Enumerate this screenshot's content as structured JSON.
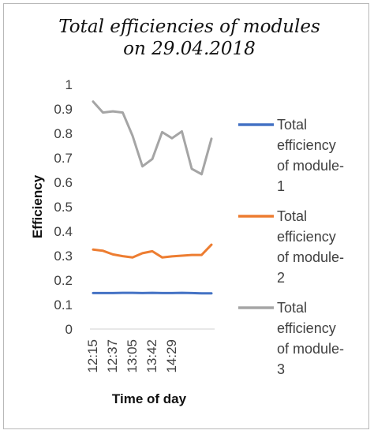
{
  "chart_data": {
    "type": "line",
    "title": "Total efficiencies of modules on 29.04.2018",
    "xlabel": "Time of day",
    "ylabel": "Efficiency",
    "x_tick_labels": [
      "12:15",
      "12:37",
      "13:05",
      "13:42",
      "14:29"
    ],
    "x_tick_label_every": 2,
    "ylim": [
      0,
      1
    ],
    "y_ticks": [
      "0",
      "0.1",
      "0.2",
      "0.3",
      "0.4",
      "0.5",
      "0.6",
      "0.7",
      "0.8",
      "0.9",
      "1"
    ],
    "grid": false,
    "legend_position": "right",
    "series": [
      {
        "name": "Total efficiency of module-1",
        "legend_lines": [
          "Total",
          "efficiency",
          "of module-",
          "1"
        ],
        "color": "#4472C4",
        "values": [
          0.147,
          0.147,
          0.147,
          0.148,
          0.148,
          0.147,
          0.148,
          0.147,
          0.147,
          0.148,
          0.147,
          0.146,
          0.146
        ]
      },
      {
        "name": "Total efficiency of module-2",
        "legend_lines": [
          "Total",
          "efficiency",
          "of module-",
          "2"
        ],
        "color": "#ED7D31",
        "values": [
          0.325,
          0.32,
          0.305,
          0.298,
          0.293,
          0.31,
          0.318,
          0.293,
          0.297,
          0.3,
          0.303,
          0.303,
          0.345
        ]
      },
      {
        "name": "Total efficiency of module-3",
        "legend_lines": [
          "Total",
          "efficiency",
          "of module-",
          "3"
        ],
        "color": "#A5A5A5",
        "values": [
          0.93,
          0.885,
          0.89,
          0.885,
          0.79,
          0.665,
          0.695,
          0.805,
          0.78,
          0.808,
          0.655,
          0.633,
          0.778
        ]
      }
    ]
  }
}
